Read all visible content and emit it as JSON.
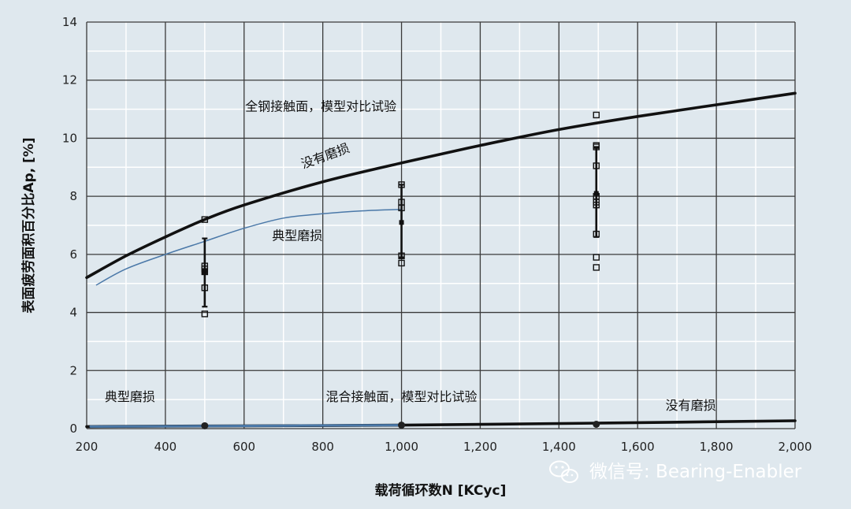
{
  "chart_data": {
    "type": "line",
    "xlabel": "载荷循环数N [KCyc]",
    "ylabel": "表面疲劳面积百分比Ap, [%]",
    "xlim": [
      200,
      2000
    ],
    "ylim": [
      0,
      14
    ],
    "x_ticks": [
      200,
      400,
      600,
      800,
      1000,
      1200,
      1400,
      1600,
      1800,
      2000
    ],
    "x_tick_labels": [
      "200",
      "400",
      "600",
      "800",
      "1,000",
      "1,200",
      "1,400",
      "1,600",
      "1,800",
      "2,000"
    ],
    "y_ticks": [
      0,
      2,
      4,
      6,
      8,
      10,
      12,
      14
    ],
    "y_tick_labels": [
      "0",
      "2",
      "4",
      "6",
      "8",
      "10",
      "12",
      "14"
    ],
    "grid": true,
    "series": [
      {
        "name": "没有磨损",
        "style": "thick-black",
        "x": [
          200,
          300,
          400,
          500,
          600,
          800,
          1000,
          1200,
          1400,
          1600,
          1800,
          2000
        ],
        "y": [
          5.2,
          5.95,
          6.6,
          7.2,
          7.7,
          8.5,
          9.15,
          9.75,
          10.3,
          10.75,
          11.15,
          11.55
        ]
      },
      {
        "name": "典型磨损",
        "style": "thin-blue",
        "x": [
          225,
          300,
          400,
          500,
          600,
          700,
          800,
          900,
          1000
        ],
        "y": [
          4.95,
          5.5,
          6.0,
          6.45,
          6.9,
          7.25,
          7.4,
          7.5,
          7.55
        ]
      },
      {
        "name": "没有磨损",
        "style": "thick-black",
        "x": [
          200,
          500,
          1000,
          1500,
          2000
        ],
        "y": [
          0.07,
          0.09,
          0.12,
          0.19,
          0.27
        ]
      },
      {
        "name": "典型磨损",
        "style": "thick-blue",
        "x": [
          210,
          500,
          1000
        ],
        "y": [
          0.07,
          0.09,
          0.12
        ]
      }
    ],
    "test_points": [
      {
        "x": 500,
        "y": [
          7.2,
          5.6,
          5.5,
          5.4,
          4.85,
          3.95
        ]
      },
      {
        "x": 1000,
        "y": [
          8.4,
          7.8,
          7.6,
          5.95,
          5.7
        ]
      },
      {
        "x": 1495,
        "y": [
          10.8,
          9.75,
          9.7,
          9.05,
          8.0,
          7.8,
          7.7,
          6.7,
          5.9,
          5.55
        ]
      }
    ],
    "error_bars": [
      {
        "x": 500,
        "low": 4.2,
        "high": 6.55,
        "mean": 5.4
      },
      {
        "x": 1000,
        "low": 5.9,
        "high": 8.4,
        "mean": 7.1
      },
      {
        "x": 1495,
        "low": 6.6,
        "high": 9.7,
        "mean": 8.1
      }
    ],
    "bottom_markers": [
      {
        "x": 500,
        "y": 0.1
      },
      {
        "x": 1000,
        "y": 0.12
      },
      {
        "x": 1495,
        "y": 0.15
      }
    ],
    "annotations": [
      {
        "text": "全钢接触面，模型对比试验",
        "x": 795,
        "y": 10.95,
        "rotate": 0
      },
      {
        "text": "没有磨损",
        "x": 810,
        "y": 9.25,
        "rotate": -20
      },
      {
        "text": "典型磨损",
        "x": 735,
        "y": 6.5,
        "rotate": 0
      },
      {
        "text": "典型磨损",
        "x": 310,
        "y": 0.95,
        "rotate": 0
      },
      {
        "text": "混合接触面，模型对比试验",
        "x": 1000,
        "y": 0.95,
        "rotate": 0
      },
      {
        "text": "没有磨损",
        "x": 1735,
        "y": 0.65,
        "rotate": 0
      }
    ]
  },
  "watermark": {
    "icon": "wechat-icon",
    "text": "微信号: Bearing-Enabler"
  },
  "colors": {
    "background": "#dfe8ee",
    "grid_major": "#3a3a3a",
    "grid_minor": "#ffffff",
    "curve_black": "#111111",
    "curve_blue": "#4a78a8",
    "watermark": "#ffffff"
  }
}
